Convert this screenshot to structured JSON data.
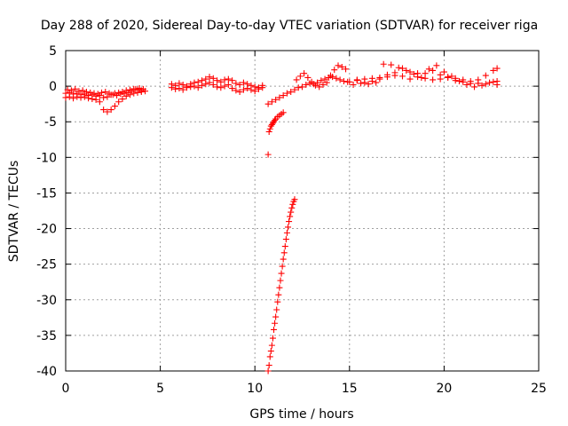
{
  "chart_data": {
    "type": "scatter",
    "title": "Day 288 of 2020, Sidereal Day-to-day VTEC variation (SDTVAR) for receiver riga",
    "xlabel": "GPS time / hours",
    "ylabel": "SDTVAR / TECUs",
    "xlim": [
      0,
      25
    ],
    "ylim": [
      -40,
      5
    ],
    "xticks": [
      0,
      5,
      10,
      15,
      20,
      25
    ],
    "yticks": [
      5,
      0,
      -5,
      -10,
      -15,
      -20,
      -25,
      -30,
      -35,
      -40
    ],
    "grid": true,
    "marker": "+",
    "color": "#ff0000",
    "series": [
      {
        "points": [
          [
            0.0,
            -1.0
          ],
          [
            0.2,
            -0.9
          ],
          [
            0.4,
            -1.1
          ],
          [
            0.6,
            -1.0
          ],
          [
            0.8,
            -1.2
          ],
          [
            1.0,
            -1.1
          ],
          [
            1.2,
            -1.3
          ],
          [
            1.4,
            -1.2
          ],
          [
            1.6,
            -1.4
          ],
          [
            1.8,
            -1.3
          ],
          [
            2.0,
            -1.6
          ],
          [
            2.2,
            -1.5
          ],
          [
            2.4,
            -1.2
          ],
          [
            2.6,
            -1.0
          ],
          [
            2.8,
            -0.9
          ],
          [
            3.0,
            -0.8
          ],
          [
            3.2,
            -0.6
          ],
          [
            3.4,
            -0.5
          ],
          [
            3.6,
            -0.4
          ],
          [
            3.8,
            -0.5
          ],
          [
            4.0,
            -0.6
          ],
          [
            4.2,
            -0.7
          ],
          [
            0.0,
            -1.6
          ],
          [
            0.2,
            -1.5
          ],
          [
            0.4,
            -1.7
          ],
          [
            0.6,
            -1.5
          ],
          [
            0.8,
            -1.6
          ],
          [
            1.0,
            -1.5
          ],
          [
            1.2,
            -1.7
          ],
          [
            1.4,
            -1.8
          ],
          [
            1.6,
            -1.9
          ],
          [
            1.8,
            -2.2
          ],
          [
            2.0,
            -3.3
          ],
          [
            2.2,
            -3.6
          ],
          [
            2.4,
            -3.3
          ],
          [
            2.6,
            -2.8
          ],
          [
            2.8,
            -2.2
          ],
          [
            3.0,
            -1.8
          ],
          [
            3.2,
            -1.4
          ],
          [
            3.4,
            -1.2
          ],
          [
            3.6,
            -1.0
          ],
          [
            3.8,
            -0.9
          ],
          [
            4.0,
            -0.8
          ],
          [
            0.1,
            -0.5
          ],
          [
            0.3,
            -0.6
          ],
          [
            0.5,
            -0.4
          ],
          [
            0.7,
            -0.7
          ],
          [
            0.9,
            -0.6
          ],
          [
            1.1,
            -0.8
          ],
          [
            1.3,
            -0.9
          ],
          [
            1.5,
            -1.0
          ],
          [
            1.7,
            -1.1
          ],
          [
            1.9,
            -0.9
          ],
          [
            2.1,
            -0.8
          ],
          [
            2.3,
            -1.0
          ],
          [
            2.5,
            -1.2
          ],
          [
            2.7,
            -1.3
          ],
          [
            2.9,
            -1.1
          ],
          [
            3.1,
            -1.0
          ],
          [
            3.3,
            -0.9
          ],
          [
            3.5,
            -0.7
          ],
          [
            3.7,
            -0.4
          ],
          [
            3.9,
            -0.3
          ],
          [
            4.1,
            -0.4
          ],
          [
            5.6,
            0.3
          ],
          [
            5.8,
            0.1
          ],
          [
            6.0,
            0.4
          ],
          [
            6.2,
            0.2
          ],
          [
            6.4,
            0.0
          ],
          [
            6.6,
            0.3
          ],
          [
            6.8,
            0.5
          ],
          [
            7.0,
            0.6
          ],
          [
            7.2,
            0.8
          ],
          [
            7.4,
            1.0
          ],
          [
            7.6,
            1.3
          ],
          [
            7.8,
            1.1
          ],
          [
            8.0,
            0.8
          ],
          [
            8.2,
            0.6
          ],
          [
            8.4,
            0.9
          ],
          [
            8.6,
            1.0
          ],
          [
            8.8,
            0.8
          ],
          [
            9.0,
            0.4
          ],
          [
            9.2,
            0.2
          ],
          [
            9.4,
            0.5
          ],
          [
            9.6,
            0.3
          ],
          [
            9.8,
            0.1
          ],
          [
            10.0,
            -0.1
          ],
          [
            10.2,
            -0.2
          ],
          [
            10.4,
            0.1
          ],
          [
            5.6,
            -0.2
          ],
          [
            5.8,
            -0.4
          ],
          [
            6.0,
            -0.3
          ],
          [
            6.2,
            -0.5
          ],
          [
            6.4,
            -0.2
          ],
          [
            6.6,
            -0.1
          ],
          [
            6.8,
            0.0
          ],
          [
            7.0,
            -0.2
          ],
          [
            7.2,
            0.1
          ],
          [
            7.4,
            0.3
          ],
          [
            7.6,
            0.5
          ],
          [
            7.8,
            0.2
          ],
          [
            8.0,
            -0.1
          ],
          [
            8.2,
            -0.2
          ],
          [
            8.4,
            0.0
          ],
          [
            8.6,
            0.2
          ],
          [
            8.8,
            -0.3
          ],
          [
            9.0,
            -0.6
          ],
          [
            9.2,
            -0.8
          ],
          [
            9.4,
            -0.5
          ],
          [
            9.6,
            -0.3
          ],
          [
            9.8,
            -0.5
          ],
          [
            10.0,
            -0.7
          ],
          [
            10.2,
            -0.4
          ],
          [
            10.4,
            -0.2
          ],
          [
            10.7,
            -2.5
          ],
          [
            10.9,
            -2.2
          ],
          [
            11.1,
            -1.9
          ],
          [
            11.3,
            -1.6
          ],
          [
            11.5,
            -1.3
          ],
          [
            11.7,
            -1.0
          ],
          [
            11.9,
            -0.8
          ],
          [
            12.1,
            -0.5
          ],
          [
            12.3,
            -0.2
          ],
          [
            12.5,
            -0.1
          ],
          [
            12.7,
            0.2
          ],
          [
            12.9,
            0.4
          ],
          [
            13.1,
            0.3
          ],
          [
            13.3,
            0.5
          ],
          [
            13.5,
            0.8
          ],
          [
            13.7,
            1.0
          ],
          [
            13.9,
            1.2
          ],
          [
            14.1,
            1.3
          ],
          [
            14.3,
            1.1
          ],
          [
            14.5,
            0.9
          ],
          [
            14.7,
            0.7
          ],
          [
            14.9,
            0.6
          ],
          [
            12.2,
            0.9
          ],
          [
            12.4,
            1.4
          ],
          [
            12.6,
            1.8
          ],
          [
            12.8,
            1.2
          ],
          [
            13.0,
            0.6
          ],
          [
            13.2,
            0.1
          ],
          [
            13.4,
            -0.1
          ],
          [
            13.6,
            0.2
          ],
          [
            13.8,
            0.5
          ],
          [
            14.0,
            1.5
          ],
          [
            14.2,
            2.3
          ],
          [
            14.4,
            2.9
          ],
          [
            14.6,
            2.7
          ],
          [
            14.8,
            2.4
          ],
          [
            10.7,
            -9.6
          ],
          [
            10.75,
            -6.4
          ],
          [
            10.8,
            -6.0
          ],
          [
            10.85,
            -5.6
          ],
          [
            10.9,
            -5.4
          ],
          [
            10.95,
            -5.2
          ],
          [
            11.0,
            -5.0
          ],
          [
            11.05,
            -4.8
          ],
          [
            11.1,
            -4.6
          ],
          [
            11.2,
            -4.3
          ],
          [
            11.3,
            -4.1
          ],
          [
            11.4,
            -3.9
          ],
          [
            11.5,
            -3.7
          ],
          [
            10.7,
            -40.0
          ],
          [
            10.75,
            -39.2
          ],
          [
            10.8,
            -38.0
          ],
          [
            10.85,
            -37.2
          ],
          [
            10.9,
            -36.4
          ],
          [
            10.95,
            -35.4
          ],
          [
            11.0,
            -34.2
          ],
          [
            11.05,
            -33.3
          ],
          [
            11.1,
            -32.4
          ],
          [
            11.15,
            -31.4
          ],
          [
            11.2,
            -30.3
          ],
          [
            11.25,
            -29.3
          ],
          [
            11.3,
            -28.3
          ],
          [
            11.35,
            -27.3
          ],
          [
            11.4,
            -26.3
          ],
          [
            11.45,
            -25.3
          ],
          [
            11.5,
            -24.3
          ],
          [
            11.55,
            -23.4
          ],
          [
            11.6,
            -22.5
          ],
          [
            11.65,
            -21.5
          ],
          [
            11.7,
            -20.6
          ],
          [
            11.75,
            -19.8
          ],
          [
            11.8,
            -19.0
          ],
          [
            11.85,
            -18.3
          ],
          [
            11.9,
            -17.7
          ],
          [
            11.95,
            -17.1
          ],
          [
            12.0,
            -16.6
          ],
          [
            12.05,
            -16.2
          ],
          [
            12.1,
            -15.9
          ],
          [
            15.0,
            0.6
          ],
          [
            15.4,
            0.8
          ],
          [
            15.8,
            0.5
          ],
          [
            16.2,
            0.7
          ],
          [
            16.6,
            1.0
          ],
          [
            17.0,
            1.6
          ],
          [
            17.4,
            1.9
          ],
          [
            17.8,
            1.4
          ],
          [
            18.2,
            1.0
          ],
          [
            18.6,
            1.3
          ],
          [
            19.0,
            1.8
          ],
          [
            19.4,
            2.2
          ],
          [
            19.8,
            1.6
          ],
          [
            20.2,
            1.2
          ],
          [
            20.6,
            0.8
          ],
          [
            21.0,
            0.6
          ],
          [
            21.4,
            0.4
          ],
          [
            21.8,
            0.9
          ],
          [
            22.2,
            1.5
          ],
          [
            22.6,
            2.2
          ],
          [
            22.8,
            2.5
          ],
          [
            15.2,
            0.2
          ],
          [
            15.6,
            0.4
          ],
          [
            16.0,
            0.3
          ],
          [
            16.4,
            0.5
          ],
          [
            16.8,
            3.1
          ],
          [
            17.2,
            3.0
          ],
          [
            17.6,
            2.6
          ],
          [
            18.0,
            2.2
          ],
          [
            18.4,
            1.7
          ],
          [
            18.8,
            1.2
          ],
          [
            19.2,
            2.4
          ],
          [
            19.6,
            2.9
          ],
          [
            20.0,
            2.0
          ],
          [
            20.4,
            1.4
          ],
          [
            20.8,
            0.7
          ],
          [
            21.2,
            0.2
          ],
          [
            21.6,
            -0.1
          ],
          [
            22.0,
            0.1
          ],
          [
            22.4,
            0.5
          ],
          [
            22.8,
            0.7
          ],
          [
            15.4,
            0.9
          ],
          [
            15.8,
            1.0
          ],
          [
            16.2,
            1.1
          ],
          [
            16.6,
            1.2
          ],
          [
            17.0,
            1.3
          ],
          [
            17.4,
            1.5
          ],
          [
            17.8,
            2.5
          ],
          [
            18.2,
            2.0
          ],
          [
            18.6,
            1.8
          ],
          [
            19.0,
            1.1
          ],
          [
            19.4,
            0.9
          ],
          [
            19.8,
            1.0
          ],
          [
            20.2,
            1.3
          ],
          [
            20.6,
            1.1
          ],
          [
            21.0,
            0.9
          ],
          [
            21.4,
            0.7
          ],
          [
            21.8,
            0.4
          ],
          [
            22.2,
            0.3
          ],
          [
            22.6,
            0.6
          ],
          [
            22.8,
            0.2
          ]
        ]
      }
    ]
  }
}
